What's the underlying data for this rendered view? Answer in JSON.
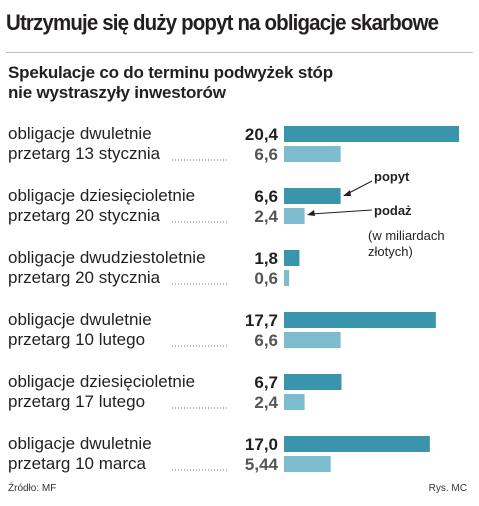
{
  "title": "Utrzymuje się duży popyt na obligacje skarbowe",
  "subtitle_line1": "Spekulacje co do terminu podwyżek stóp",
  "subtitle_line2": "nie wystraszyły inwestorów",
  "source": "Źródło: MF",
  "credit": "Rys. MC",
  "colors": {
    "demand": "#3a94ab",
    "supply": "#7dbccf",
    "rule": "#bdbdbd",
    "text": "#231f20"
  },
  "chart_data": {
    "type": "bar",
    "orientation": "horizontal",
    "legend": {
      "demand": "popyt",
      "supply": "podaż"
    },
    "unit_note": [
      "(w miliardach",
      "złotych)"
    ],
    "groups": [
      {
        "label_line1": "obligacje dwuletnie",
        "label_line2": "przetarg 13 stycznia",
        "demand": 20.4,
        "demand_label": "20,4",
        "supply": 6.6,
        "supply_label": "6,6"
      },
      {
        "label_line1": "obligacje dziesięcioletnie",
        "label_line2": "przetarg 20 stycznia",
        "demand": 6.6,
        "demand_label": "6,6",
        "supply": 2.4,
        "supply_label": "2,4"
      },
      {
        "label_line1": "obligacje dwudziestoletnie",
        "label_line2": "przetarg 20 stycznia",
        "demand": 1.8,
        "demand_label": "1,8",
        "supply": 0.6,
        "supply_label": "0,6"
      },
      {
        "label_line1": "obligacje dwuletnie",
        "label_line2": "przetarg 10 lutego",
        "demand": 17.7,
        "demand_label": "17,7",
        "supply": 6.6,
        "supply_label": "6,6"
      },
      {
        "label_line1": "obligacje dziesięcioletnie",
        "label_line2": "przetarg 17 lutego",
        "demand": 6.7,
        "demand_label": "6,7",
        "supply": 2.4,
        "supply_label": "2,4"
      },
      {
        "label_line1": "obligacje dwuletnie",
        "label_line2": "przetarg 10 marca",
        "demand": 17.0,
        "demand_label": "17,0",
        "supply": 5.44,
        "supply_label": "5,44"
      }
    ]
  }
}
